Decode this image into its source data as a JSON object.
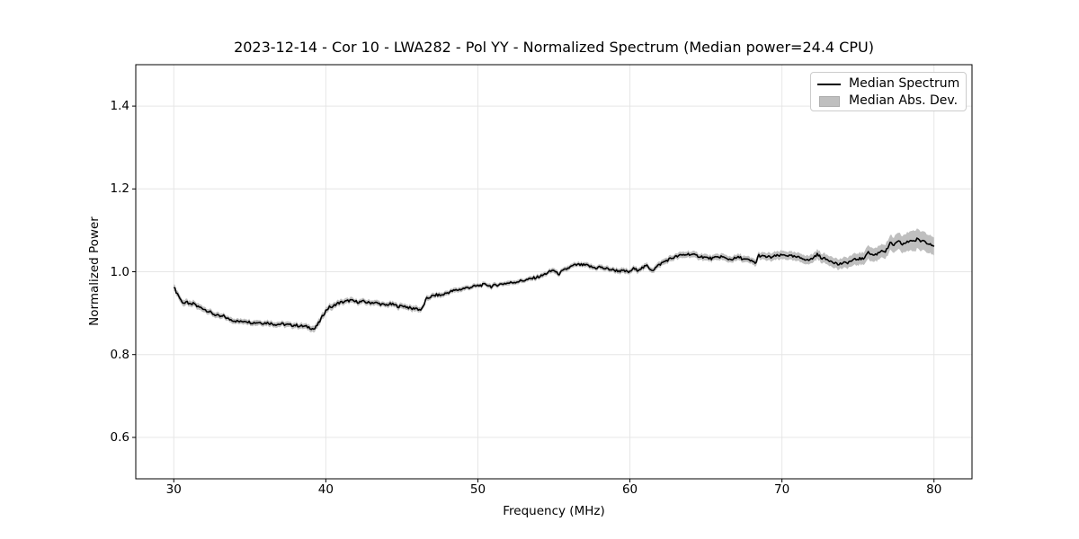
{
  "chart_data": {
    "type": "line",
    "title": "2023-12-14 - Cor 10 - LWA282 - Pol YY - Normalized Spectrum (Median power=24.4 CPU)",
    "xlabel": "Frequency (MHz)",
    "ylabel": "Normalized Power",
    "xlim": [
      27.5,
      82.5
    ],
    "ylim": [
      0.5,
      1.5
    ],
    "grid": true,
    "xticks": {
      "values": [
        30,
        40,
        50,
        60,
        70,
        80
      ],
      "labels": [
        "30",
        "40",
        "50",
        "60",
        "70",
        "80"
      ]
    },
    "yticks": {
      "values": [
        0.6,
        0.8,
        1.0,
        1.2,
        1.4
      ],
      "labels": [
        "0.6",
        "0.8",
        "1.0",
        "1.2",
        "1.4"
      ]
    },
    "legend": {
      "position": "upper right",
      "entries": [
        {
          "label": "Median Spectrum",
          "type": "line",
          "color": "#000000"
        },
        {
          "label": "Median Abs. Dev.",
          "type": "patch",
          "color": "#bfbfbf"
        }
      ]
    },
    "series": [
      {
        "name": "Median Spectrum",
        "x": [
          30.0,
          30.15,
          30.3,
          30.45,
          30.6,
          30.75,
          30.9,
          31.05,
          31.2,
          31.35,
          31.5,
          31.7,
          31.9,
          32.1,
          32.35,
          32.6,
          32.85,
          33.1,
          33.3,
          33.55,
          33.8,
          34.1,
          34.4,
          34.7,
          35.0,
          35.3,
          35.6,
          35.9,
          36.2,
          36.5,
          36.8,
          37.1,
          37.4,
          37.7,
          38.0,
          38.3,
          38.6,
          38.9,
          39.1,
          39.25,
          39.4,
          39.6,
          39.8,
          40.0,
          40.15,
          40.3,
          40.45,
          40.6,
          40.8,
          41.0,
          41.3,
          41.6,
          41.9,
          42.2,
          42.5,
          42.8,
          43.1,
          43.4,
          43.7,
          43.9,
          44.2,
          44.5,
          44.8,
          45.1,
          45.4,
          45.7,
          45.9,
          46.1,
          46.3,
          46.45,
          46.6,
          46.8,
          47.0,
          47.3,
          47.6,
          47.9,
          48.2,
          48.5,
          48.8,
          49.1,
          49.4,
          49.7,
          50.0,
          50.3,
          50.6,
          50.9,
          51.2,
          51.5,
          51.8,
          52.1,
          52.4,
          52.7,
          53.0,
          53.3,
          53.6,
          53.9,
          54.2,
          54.5,
          54.8,
          55.0,
          55.15,
          55.35,
          55.55,
          55.8,
          56.0,
          56.3,
          56.6,
          56.9,
          57.2,
          57.5,
          57.8,
          58.0,
          58.2,
          58.5,
          58.8,
          59.1,
          59.4,
          59.7,
          60.0,
          60.2,
          60.45,
          60.7,
          60.95,
          61.1,
          61.3,
          61.5,
          61.7,
          61.9,
          62.1,
          62.4,
          62.7,
          63.0,
          63.3,
          63.6,
          63.9,
          64.2,
          64.5,
          64.8,
          65.1,
          65.4,
          65.7,
          66.0,
          66.3,
          66.6,
          66.9,
          67.2,
          67.5,
          67.8,
          68.1,
          68.3,
          68.45,
          68.7,
          69.0,
          69.3,
          69.6,
          69.9,
          70.2,
          70.5,
          70.8,
          71.1,
          71.4,
          71.7,
          72.0,
          72.3,
          72.6,
          72.9,
          73.2,
          73.5,
          73.7,
          73.9,
          74.2,
          74.5,
          74.8,
          75.1,
          75.35,
          75.6,
          75.8,
          76.0,
          76.2,
          76.4,
          76.6,
          76.8,
          77.0,
          77.15,
          77.3,
          77.5,
          77.7,
          77.9,
          78.1,
          78.3,
          78.5,
          78.7,
          78.9,
          79.1,
          79.3,
          79.5,
          79.7,
          79.85,
          80.0
        ],
        "y": [
          0.965,
          0.952,
          0.944,
          0.932,
          0.926,
          0.923,
          0.927,
          0.92,
          0.921,
          0.924,
          0.917,
          0.914,
          0.912,
          0.908,
          0.903,
          0.898,
          0.894,
          0.891,
          0.893,
          0.886,
          0.884,
          0.881,
          0.879,
          0.882,
          0.878,
          0.877,
          0.878,
          0.876,
          0.877,
          0.874,
          0.873,
          0.874,
          0.872,
          0.871,
          0.871,
          0.869,
          0.868,
          0.866,
          0.863,
          0.861,
          0.869,
          0.88,
          0.894,
          0.906,
          0.912,
          0.916,
          0.913,
          0.921,
          0.924,
          0.926,
          0.928,
          0.931,
          0.928,
          0.927,
          0.928,
          0.925,
          0.926,
          0.924,
          0.921,
          0.919,
          0.922,
          0.92,
          0.916,
          0.918,
          0.914,
          0.91,
          0.913,
          0.909,
          0.908,
          0.92,
          0.934,
          0.938,
          0.941,
          0.944,
          0.943,
          0.948,
          0.952,
          0.955,
          0.957,
          0.96,
          0.962,
          0.964,
          0.966,
          0.968,
          0.969,
          0.964,
          0.968,
          0.97,
          0.972,
          0.973,
          0.975,
          0.977,
          0.979,
          0.981,
          0.984,
          0.987,
          0.99,
          0.996,
          1.001,
          1.005,
          0.997,
          0.995,
          1.001,
          1.006,
          1.01,
          1.015,
          1.017,
          1.016,
          1.015,
          1.011,
          1.009,
          1.012,
          1.009,
          1.007,
          1.005,
          1.003,
          1.002,
          1.001,
          0.999,
          1.008,
          1.004,
          1.008,
          1.011,
          1.015,
          1.008,
          1.004,
          1.01,
          1.016,
          1.021,
          1.027,
          1.032,
          1.036,
          1.039,
          1.041,
          1.043,
          1.04,
          1.038,
          1.036,
          1.033,
          1.032,
          1.034,
          1.037,
          1.032,
          1.03,
          1.032,
          1.035,
          1.03,
          1.028,
          1.024,
          1.021,
          1.04,
          1.037,
          1.036,
          1.035,
          1.038,
          1.039,
          1.041,
          1.038,
          1.036,
          1.034,
          1.033,
          1.027,
          1.032,
          1.042,
          1.034,
          1.03,
          1.027,
          1.022,
          1.017,
          1.02,
          1.021,
          1.025,
          1.029,
          1.032,
          1.03,
          1.047,
          1.044,
          1.04,
          1.042,
          1.047,
          1.053,
          1.048,
          1.06,
          1.07,
          1.064,
          1.068,
          1.073,
          1.066,
          1.069,
          1.072,
          1.077,
          1.073,
          1.079,
          1.074,
          1.076,
          1.071,
          1.069,
          1.066,
          1.063
        ]
      },
      {
        "name": "Median Abs. Dev.",
        "x": [
          30,
          32,
          34,
          36,
          38,
          39.5,
          40.5,
          42,
          44,
          46,
          47,
          50,
          53,
          56,
          58,
          60,
          62,
          64,
          66,
          68,
          69,
          70,
          71,
          72,
          73,
          74,
          75,
          75.8,
          76.5,
          77.3,
          78,
          78.7,
          79.3,
          80
        ],
        "halfwidth": [
          0.007,
          0.006,
          0.0055,
          0.0055,
          0.0055,
          0.007,
          0.0065,
          0.0055,
          0.0055,
          0.006,
          0.005,
          0.0045,
          0.0045,
          0.005,
          0.005,
          0.0055,
          0.006,
          0.0065,
          0.0065,
          0.007,
          0.008,
          0.009,
          0.009,
          0.01,
          0.011,
          0.012,
          0.013,
          0.016,
          0.015,
          0.018,
          0.02,
          0.024,
          0.022,
          0.02
        ]
      }
    ],
    "style": {
      "line_color": "#000000",
      "band_color": "#bfbfbf",
      "grid_color": "#e6e6e6",
      "axes_color": "#000000",
      "background_color": "#ffffff",
      "noise_amplitude": 0.0033
    }
  }
}
